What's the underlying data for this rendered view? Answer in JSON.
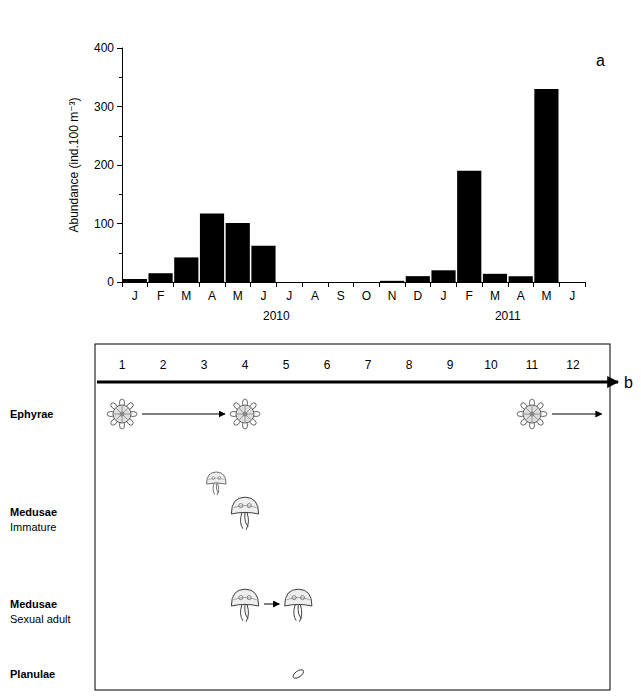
{
  "chart_data": {
    "type": "bar",
    "panel_label": "a",
    "y_label": "Abundance (ind.100 m⁻³)",
    "categories": [
      "J",
      "F",
      "M",
      "A",
      "M",
      "J",
      "J",
      "A",
      "S",
      "O",
      "N",
      "D",
      "J",
      "F",
      "M",
      "A",
      "M",
      "J"
    ],
    "x_groups": [
      {
        "label": "2010",
        "start": 0,
        "end": 11
      },
      {
        "label": "2011",
        "start": 12,
        "end": 17
      }
    ],
    "values": [
      5,
      15,
      42,
      117,
      101,
      62,
      0,
      0,
      0,
      0,
      2,
      10,
      20,
      190,
      14,
      10,
      330,
      0
    ],
    "color": "#000000",
    "ylim": [
      0,
      400
    ],
    "yticks": [
      0,
      100,
      200,
      300,
      400
    ],
    "grid": false
  },
  "diagram": {
    "panel_label": "b",
    "months": [
      1,
      2,
      3,
      4,
      5,
      6,
      7,
      8,
      9,
      10,
      11,
      12
    ],
    "rows": [
      {
        "label": "Ephyrae",
        "marker": "ephyra",
        "marks": [
          1,
          4,
          11
        ],
        "arrows": [
          [
            1,
            4
          ],
          [
            11,
            12.7
          ]
        ]
      },
      {
        "label": "Medusae",
        "sublabel": "Immature",
        "marker": "medusa",
        "marks": [
          3.3,
          4
        ]
      },
      {
        "label": "Medusae",
        "sublabel": "Sexual adult",
        "marker": "medusa",
        "marks": [
          4,
          5.3
        ],
        "arrows": [
          [
            4,
            5.3
          ]
        ]
      },
      {
        "label": "Planulae",
        "marker": "planula",
        "marks": [
          5.3
        ]
      }
    ]
  }
}
